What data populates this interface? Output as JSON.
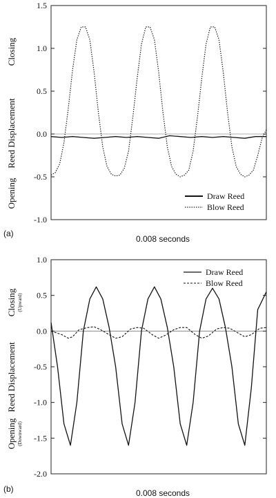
{
  "chart_data": [
    {
      "type": "line",
      "panel_label": "(a)",
      "xlabel": "0.008 seconds",
      "ylabel": "Reed Displacement",
      "ylabel_top": "Closing",
      "ylabel_top_sub": "",
      "ylabel_bottom": "Opening",
      "ylabel_bottom_sub": "",
      "ylim": [
        -1.0,
        1.5
      ],
      "xlim": [
        0,
        1
      ],
      "yticks": [
        "1.5",
        "1.0",
        "0.5",
        "0.0",
        "-0.5",
        "-1.0"
      ],
      "ytick_values": [
        1.5,
        1.0,
        0.5,
        0.0,
        -0.5,
        -1.0
      ],
      "grid": false,
      "legend_position": "bottom-right",
      "zero_line": true,
      "series": [
        {
          "name": "Draw Reed",
          "style": "solid",
          "x": [
            0.0,
            0.05,
            0.1,
            0.15,
            0.2,
            0.25,
            0.3,
            0.35,
            0.4,
            0.45,
            0.5,
            0.55,
            0.6,
            0.65,
            0.7,
            0.75,
            0.8,
            0.85,
            0.9,
            0.95,
            1.0
          ],
          "y": [
            -0.03,
            -0.04,
            -0.03,
            -0.04,
            -0.05,
            -0.04,
            -0.03,
            -0.04,
            -0.03,
            -0.04,
            -0.05,
            -0.02,
            -0.03,
            -0.04,
            -0.03,
            -0.04,
            -0.03,
            -0.04,
            -0.05,
            -0.03,
            -0.03
          ]
        },
        {
          "name": "Blow Reed",
          "style": "dotted",
          "x": [
            0.0,
            0.02,
            0.04,
            0.06,
            0.08,
            0.1,
            0.12,
            0.14,
            0.16,
            0.18,
            0.2,
            0.22,
            0.24,
            0.26,
            0.28,
            0.3,
            0.32,
            0.34,
            0.36,
            0.38,
            0.4,
            0.42,
            0.44,
            0.46,
            0.48,
            0.5,
            0.52,
            0.54,
            0.56,
            0.58,
            0.6,
            0.62,
            0.64,
            0.66,
            0.68,
            0.7,
            0.72,
            0.74,
            0.76,
            0.78,
            0.8,
            0.82,
            0.84,
            0.86,
            0.88,
            0.9,
            0.92,
            0.94,
            0.96,
            0.98,
            1.0
          ],
          "y": [
            -0.48,
            -0.45,
            -0.35,
            -0.1,
            0.3,
            0.75,
            1.1,
            1.25,
            1.25,
            1.1,
            0.72,
            0.25,
            -0.15,
            -0.38,
            -0.47,
            -0.49,
            -0.48,
            -0.4,
            -0.2,
            0.2,
            0.65,
            1.05,
            1.25,
            1.25,
            1.1,
            0.72,
            0.25,
            -0.15,
            -0.38,
            -0.47,
            -0.5,
            -0.48,
            -0.42,
            -0.2,
            0.2,
            0.65,
            1.05,
            1.25,
            1.25,
            1.1,
            0.72,
            0.25,
            -0.15,
            -0.38,
            -0.47,
            -0.5,
            -0.48,
            -0.42,
            -0.25,
            -0.05,
            0.05
          ]
        }
      ]
    },
    {
      "type": "line",
      "panel_label": "(b)",
      "xlabel": "0.008 seconds",
      "ylabel": "Reed Displacement",
      "ylabel_top": "Closing",
      "ylabel_top_sub": "(Upward)",
      "ylabel_bottom": "Opening",
      "ylabel_bottom_sub": "(Downward)",
      "ylim": [
        -2.0,
        1.0
      ],
      "xlim": [
        0,
        1
      ],
      "yticks": [
        "1.0",
        "0.5",
        "0.0",
        "-0.5",
        "-1.0",
        "-1.5",
        "-2.0"
      ],
      "ytick_values": [
        1.0,
        0.5,
        0.0,
        -0.5,
        -1.0,
        -1.5,
        -2.0
      ],
      "grid": false,
      "legend_position": "top-right",
      "zero_line": true,
      "series": [
        {
          "name": "Draw Reed",
          "style": "solid",
          "x": [
            0.0,
            0.03,
            0.06,
            0.09,
            0.12,
            0.15,
            0.18,
            0.21,
            0.24,
            0.27,
            0.3,
            0.33,
            0.36,
            0.39,
            0.42,
            0.45,
            0.48,
            0.51,
            0.54,
            0.57,
            0.6,
            0.63,
            0.66,
            0.69,
            0.72,
            0.75,
            0.78,
            0.81,
            0.84,
            0.87,
            0.9,
            0.93,
            0.96,
            1.0
          ],
          "y": [
            0.12,
            -0.5,
            -1.3,
            -1.6,
            -1.0,
            0.0,
            0.45,
            0.62,
            0.45,
            0.05,
            -0.5,
            -1.3,
            -1.6,
            -1.0,
            0.0,
            0.45,
            0.62,
            0.45,
            0.05,
            -0.5,
            -1.3,
            -1.6,
            -1.0,
            0.0,
            0.45,
            0.6,
            0.45,
            0.05,
            -0.5,
            -1.3,
            -1.6,
            -0.8,
            0.3,
            0.55
          ]
        },
        {
          "name": "Blow Reed",
          "style": "dashed",
          "x": [
            0.0,
            0.05,
            0.08,
            0.1,
            0.13,
            0.17,
            0.2,
            0.23,
            0.27,
            0.3,
            0.33,
            0.37,
            0.4,
            0.43,
            0.47,
            0.5,
            0.53,
            0.57,
            0.6,
            0.63,
            0.67,
            0.7,
            0.73,
            0.77,
            0.8,
            0.83,
            0.87,
            0.9,
            0.93,
            0.97,
            1.0
          ],
          "y": [
            0.0,
            -0.05,
            -0.1,
            -0.08,
            0.02,
            0.05,
            0.06,
            0.02,
            -0.05,
            -0.1,
            -0.08,
            0.03,
            0.05,
            0.04,
            -0.05,
            -0.1,
            -0.06,
            0.02,
            0.05,
            0.05,
            -0.05,
            -0.1,
            -0.07,
            0.03,
            0.05,
            0.04,
            -0.03,
            -0.08,
            -0.05,
            0.04,
            0.05
          ]
        }
      ]
    }
  ]
}
